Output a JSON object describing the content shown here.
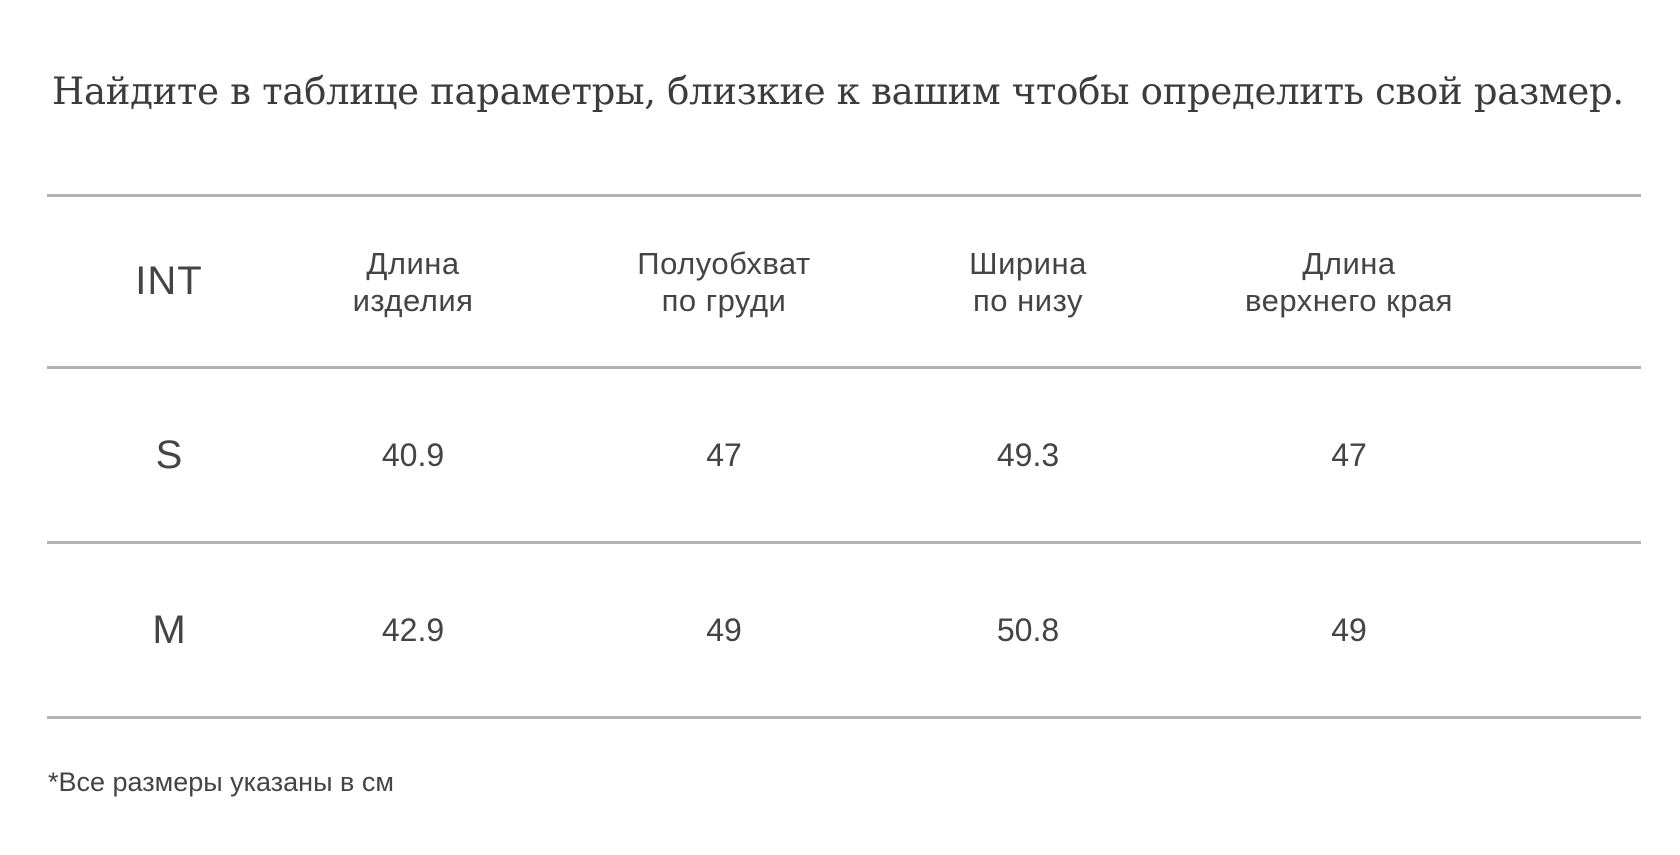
{
  "heading": "Найдите в таблице параметры, близкие к вашим чтобы определить свой размер.",
  "table": {
    "headers": [
      {
        "key": "int",
        "lines": [
          "INT"
        ]
      },
      {
        "key": "length",
        "lines": [
          "Длина",
          "изделия"
        ]
      },
      {
        "key": "chest",
        "lines": [
          "Полуобхват",
          "по груди"
        ]
      },
      {
        "key": "bottom-width",
        "lines": [
          "Ширина",
          "по низу"
        ]
      },
      {
        "key": "top-length",
        "lines": [
          "Длина",
          "верхнего края"
        ]
      }
    ],
    "rows": [
      {
        "size": "S",
        "length": "40.9",
        "chest": "47",
        "bottom_width": "49.3",
        "top_length": "47"
      },
      {
        "size": "M",
        "length": "42.9",
        "chest": "49",
        "bottom_width": "50.8",
        "top_length": "49"
      }
    ]
  },
  "footnote": "*Все размеры указаны в см",
  "colors": {
    "text": "#3a3a3a",
    "divider": "#b3b3b3",
    "background": "#ffffff"
  }
}
